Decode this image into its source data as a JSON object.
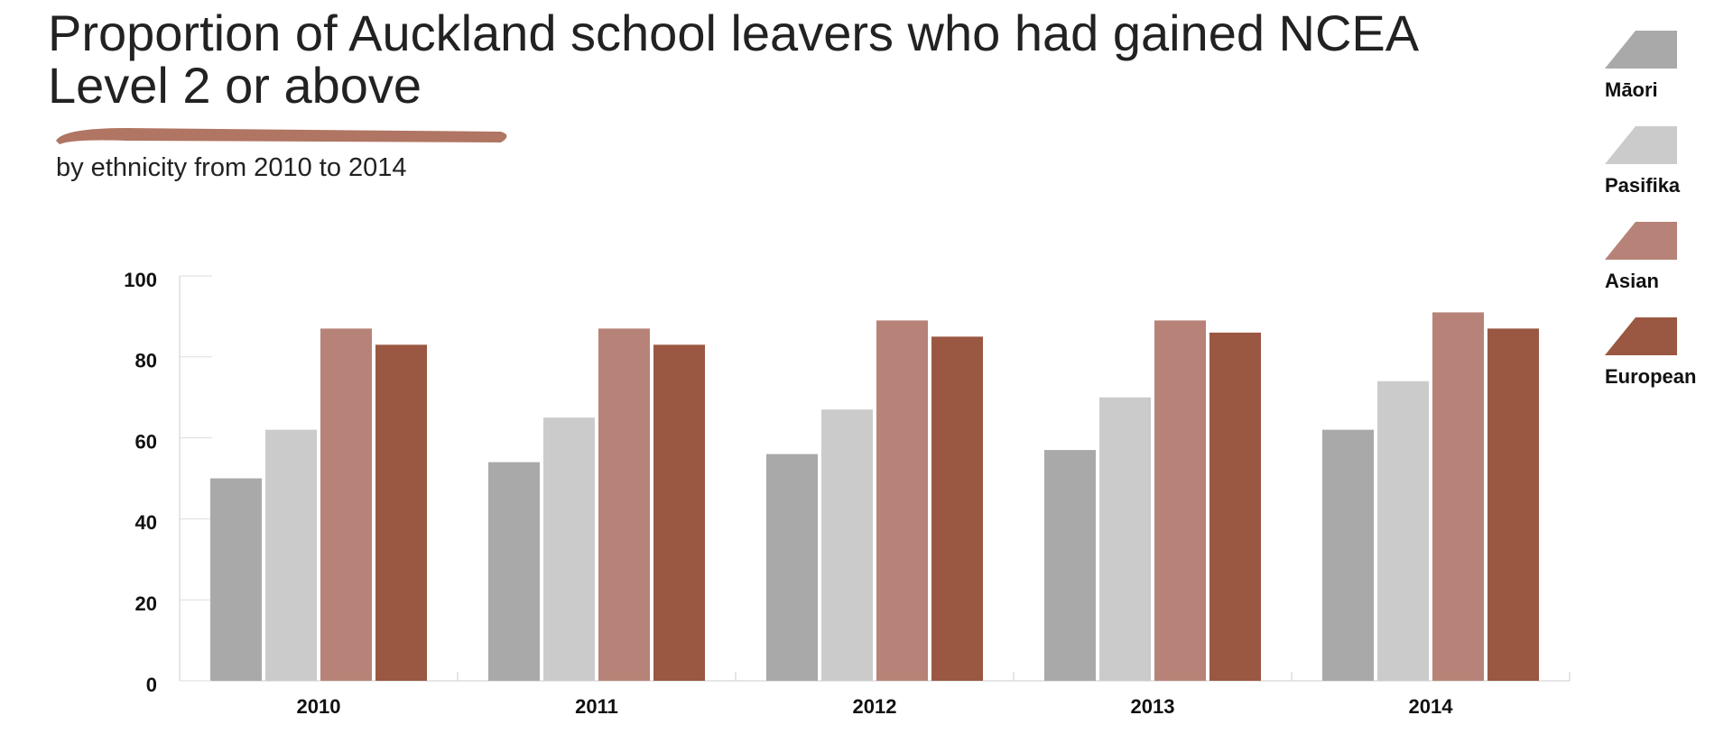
{
  "chart_data": {
    "type": "bar",
    "title": "Proportion of Auckland school leavers who had gained NCEA Level 2 or above",
    "subtitle": "by ethnicity from 2010 to 2014",
    "categories": [
      "2010",
      "2011",
      "2012",
      "2013",
      "2014"
    ],
    "series": [
      {
        "name": "Māori",
        "color": "#a9a9a9",
        "values": [
          50,
          54,
          56,
          57,
          62
        ]
      },
      {
        "name": "Pasifika",
        "color": "#cbcbcb",
        "values": [
          62,
          65,
          67,
          70,
          74
        ]
      },
      {
        "name": "Asian",
        "color": "#b78378",
        "values": [
          87,
          87,
          89,
          89,
          91
        ]
      },
      {
        "name": "European",
        "color": "#9a5741",
        "values": [
          83,
          83,
          85,
          86,
          87
        ]
      }
    ],
    "ylim": [
      0,
      100
    ],
    "yticks": [
      0,
      20,
      40,
      60,
      80,
      100
    ],
    "legend": "right"
  }
}
